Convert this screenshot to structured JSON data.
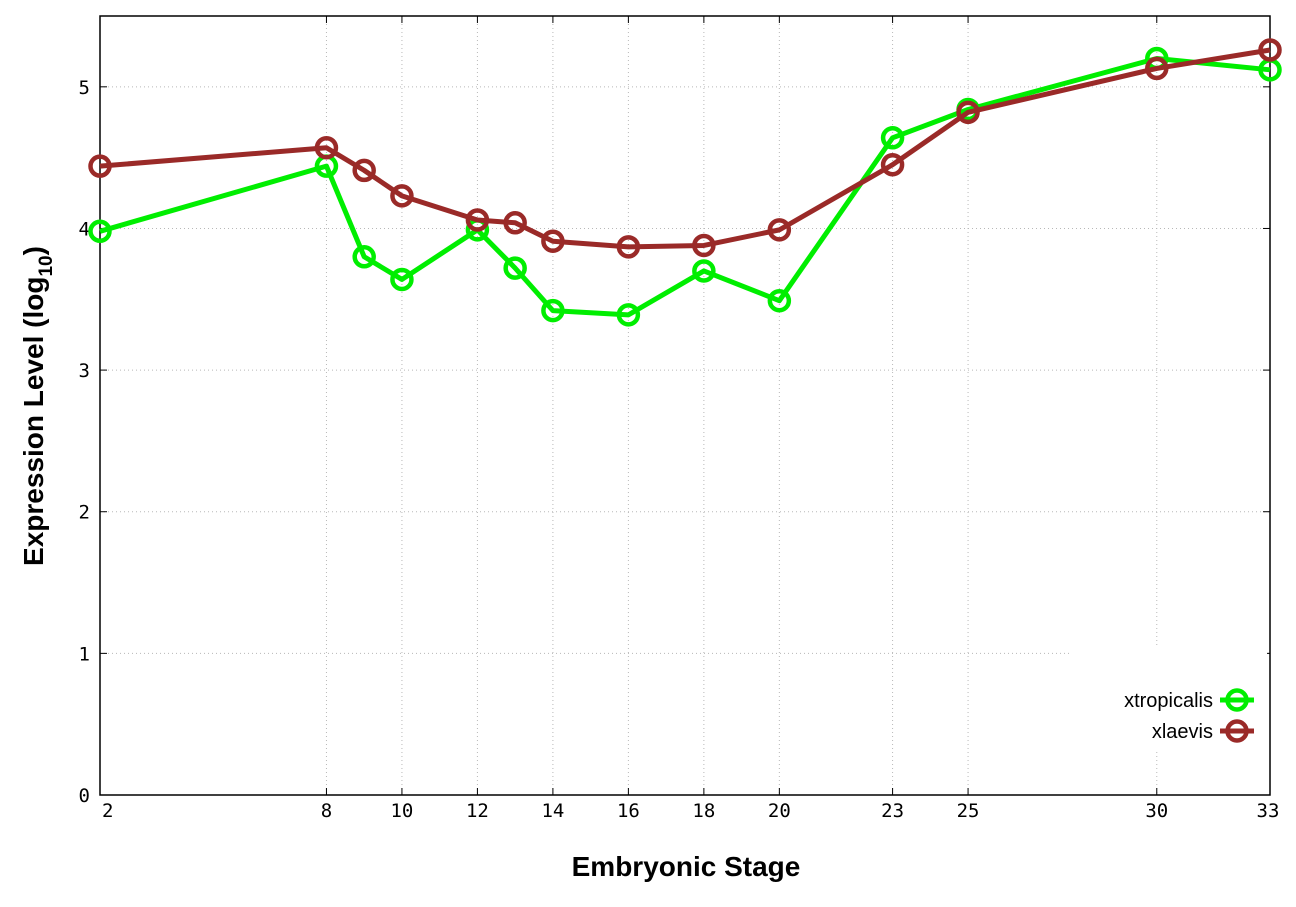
{
  "chart_data": {
    "type": "line",
    "xlabel": "Embryonic Stage",
    "ylabel_main": "Expression Level (log",
    "ylabel_sub": "10",
    "ylabel_close": ")",
    "x_ticks": [
      "2",
      "8",
      "10",
      "12",
      "14",
      "16",
      "18",
      "20",
      "23",
      "25",
      "30",
      "33"
    ],
    "y_ticks": [
      "0",
      "1",
      "2",
      "3",
      "4",
      "5"
    ],
    "ylim": [
      0,
      5.5
    ],
    "grid": true,
    "legend_position": "bottom-right",
    "x": [
      "2",
      "8",
      "9",
      "10",
      "12",
      "13",
      "14",
      "16",
      "18",
      "20",
      "23",
      "25",
      "30",
      "33"
    ],
    "series": [
      {
        "name": "xtropicalis",
        "color": "#00ee00",
        "values": [
          3.98,
          4.44,
          3.8,
          3.64,
          3.99,
          3.72,
          3.42,
          3.39,
          3.7,
          3.49,
          4.64,
          4.84,
          5.2,
          5.12
        ]
      },
      {
        "name": "xlaevis",
        "color": "#9a2a28",
        "values": [
          4.44,
          4.57,
          4.41,
          4.23,
          4.06,
          4.04,
          3.91,
          3.87,
          3.88,
          3.99,
          4.45,
          4.82,
          5.13,
          5.26
        ]
      }
    ]
  }
}
